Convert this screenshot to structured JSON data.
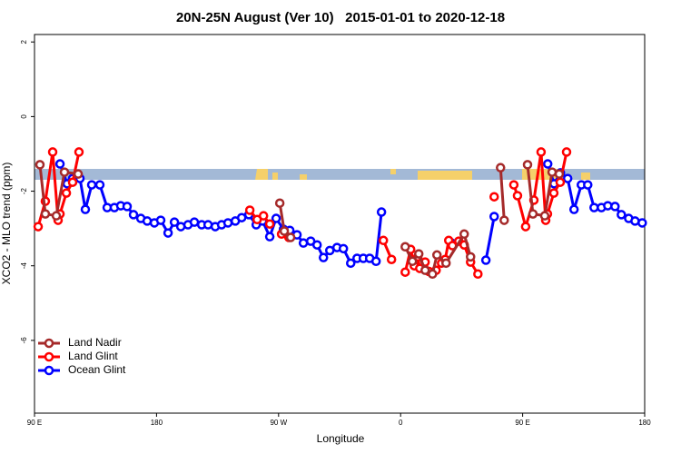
{
  "chart_data": {
    "type": "line",
    "title": "20N-25N August (Ver 10)   2015-01-01 to 2020-12-18",
    "xlabel": "Longitude",
    "ylabel": "XCO2 - MLO trend (ppm)",
    "xlim": [
      90,
      540
    ],
    "ylim": [
      -7.95,
      2.2
    ],
    "xticks": [
      {
        "value": 90,
        "label": "90 E"
      },
      180,
      {
        "value": 270,
        "label": "90 W"
      },
      {
        "value": 360,
        "label": "0"
      },
      {
        "value": 450,
        "label": "90 E"
      },
      {
        "value": 540,
        "label": "180"
      }
    ],
    "yticks": [
      2,
      0,
      -2,
      -4,
      -6
    ],
    "legend": "bottomleft",
    "series": [
      {
        "name": "Land Nadir",
        "color": "#a52a2a",
        "x": [
          94.0,
          98.0,
          106.1,
          112.1,
          122.2,
          null,
          270.9,
          274.2,
          278.9,
          null,
          363.4,
          368.7,
          373.4,
          378.1,
          383.5,
          386.8,
          393.5,
          406.9,
          411.6,
          null,
          433.7,
          436.4,
          null,
          453.6,
          457.6,
          466.3,
          471.7,
          477.0
        ],
        "values": [
          -1.29,
          -2.61,
          -2.66,
          -1.49,
          -1.54,
          null,
          -2.32,
          -3.07,
          -3.24,
          null,
          -3.49,
          -3.88,
          -3.68,
          -4.12,
          -4.22,
          -3.71,
          -3.93,
          -3.15,
          -3.76,
          null,
          -1.37,
          -2.78,
          null,
          -1.29,
          -2.61,
          -2.66,
          -1.49,
          -1.54
        ]
      },
      {
        "name": "Land Glint",
        "color": "#ff0000",
        "x": [
          92.7,
          98.0,
          103.4,
          107.4,
          108.8,
          113.5,
          118.1,
          122.8,
          null,
          248.8,
          254.2,
          258.9,
          263.5,
          null,
          272.2,
          277.6,
          null,
          347.3,
          353.3,
          null,
          363.4,
          367.4,
          370.1,
          372.7,
          374.1,
          378.1,
          380.8,
          386.2,
          390.2,
          392.9,
          395.5,
          398.2,
          402.9,
          406.9,
          411.6,
          417.0,
          null,
          429.0,
          null,
          443.5,
          446.2,
          452.2,
          458.3,
          463.6,
          467.0,
          468.3,
          473.0,
          477.7,
          482.4
        ],
        "values": [
          -2.95,
          -2.27,
          -0.95,
          -2.78,
          -2.61,
          -2.05,
          -1.76,
          -0.95,
          null,
          -2.51,
          -2.76,
          -2.66,
          -2.88,
          null,
          -3.15,
          -3.24,
          null,
          -3.32,
          -3.83,
          null,
          -4.17,
          -3.56,
          -4.0,
          -3.76,
          -4.07,
          -3.9,
          -4.15,
          -4.12,
          -3.93,
          -3.83,
          -3.32,
          -3.46,
          -3.34,
          -3.44,
          -3.9,
          -4.22,
          null,
          -2.15,
          null,
          -1.83,
          -2.12,
          -2.95,
          -2.24,
          -0.95,
          -2.78,
          -2.61,
          -2.05,
          -1.76,
          -0.95
        ]
      },
      {
        "name": "Ocean Glint",
        "color": "#0000ff",
        "x": [
          108.8,
          114.1,
          118.1,
          123.5,
          127.5,
          132.2,
          138.2,
          143.6,
          148.9,
          153.6,
          158.3,
          163.0,
          168.4,
          173.1,
          178.4,
          183.1,
          188.5,
          193.2,
          197.9,
          203.2,
          207.9,
          213.3,
          218.0,
          223.3,
          228.0,
          232.7,
          238.1,
          242.8,
          248.1,
          253.5,
          258.2,
          263.5,
          268.2,
          273.6,
          278.3,
          283.6,
          288.3,
          293.7,
          298.4,
          303.1,
          307.8,
          313.1,
          317.8,
          323.2,
          327.9,
          332.5,
          337.2,
          341.9,
          345.9,
          null,
          397.5,
          null,
          422.9,
          429.0,
          null,
          468.5,
          473.2,
          477.9,
          483.2,
          487.9,
          493.3,
          498.0,
          502.7,
          508.1,
          512.8,
          518.1,
          522.8,
          528.2,
          532.9,
          538.2
        ],
        "values": [
          -1.27,
          -1.8,
          -1.66,
          -1.66,
          -2.49,
          -1.83,
          -1.83,
          -2.44,
          -2.44,
          -2.39,
          -2.41,
          -2.63,
          -2.73,
          -2.8,
          -2.85,
          -2.78,
          -3.12,
          -2.83,
          -2.95,
          -2.9,
          -2.83,
          -2.9,
          -2.9,
          -2.95,
          -2.9,
          -2.85,
          -2.8,
          -2.71,
          -2.63,
          -2.9,
          -2.8,
          -3.22,
          -2.73,
          -3.02,
          -3.05,
          -3.17,
          -3.39,
          -3.34,
          -3.44,
          -3.78,
          -3.59,
          -3.51,
          -3.54,
          -3.93,
          -3.8,
          -3.8,
          -3.8,
          -3.88,
          -2.56,
          null,
          -3.39,
          null,
          -3.85,
          -2.68,
          null,
          -1.27,
          -1.8,
          -1.51,
          -1.66,
          -2.49,
          -1.83,
          -1.83,
          -2.44,
          -2.44,
          -2.39,
          -2.41,
          -2.63,
          -2.73,
          -2.8,
          -2.85
        ]
      }
    ]
  }
}
